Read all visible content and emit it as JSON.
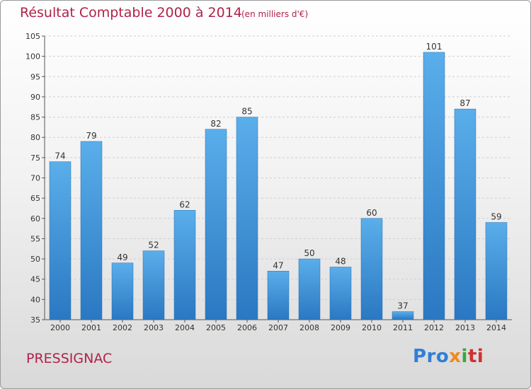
{
  "header": {
    "title": "Résultat Comptable 2000 à 2014",
    "subtitle": "(en milliers d'€)"
  },
  "footer": {
    "place": "PRESSIGNAC",
    "logo_parts": [
      "Pro",
      "x",
      "i",
      "ti"
    ]
  },
  "colors": {
    "bar": "#3f93dc",
    "title": "#b0224a"
  },
  "chart_data": {
    "type": "bar",
    "categories": [
      "2000",
      "2001",
      "2002",
      "2003",
      "2004",
      "2005",
      "2006",
      "2007",
      "2008",
      "2009",
      "2010",
      "2011",
      "2012",
      "2013",
      "2014"
    ],
    "values": [
      74,
      79,
      49,
      52,
      62,
      82,
      85,
      47,
      50,
      48,
      60,
      37,
      101,
      87,
      59
    ],
    "ylim": [
      35,
      105
    ],
    "yticks": [
      35,
      40,
      45,
      50,
      55,
      60,
      65,
      70,
      75,
      80,
      85,
      90,
      95,
      100,
      105
    ],
    "grid": true,
    "title": "Résultat Comptable 2000 à 2014",
    "xlabel": "",
    "ylabel": ""
  }
}
